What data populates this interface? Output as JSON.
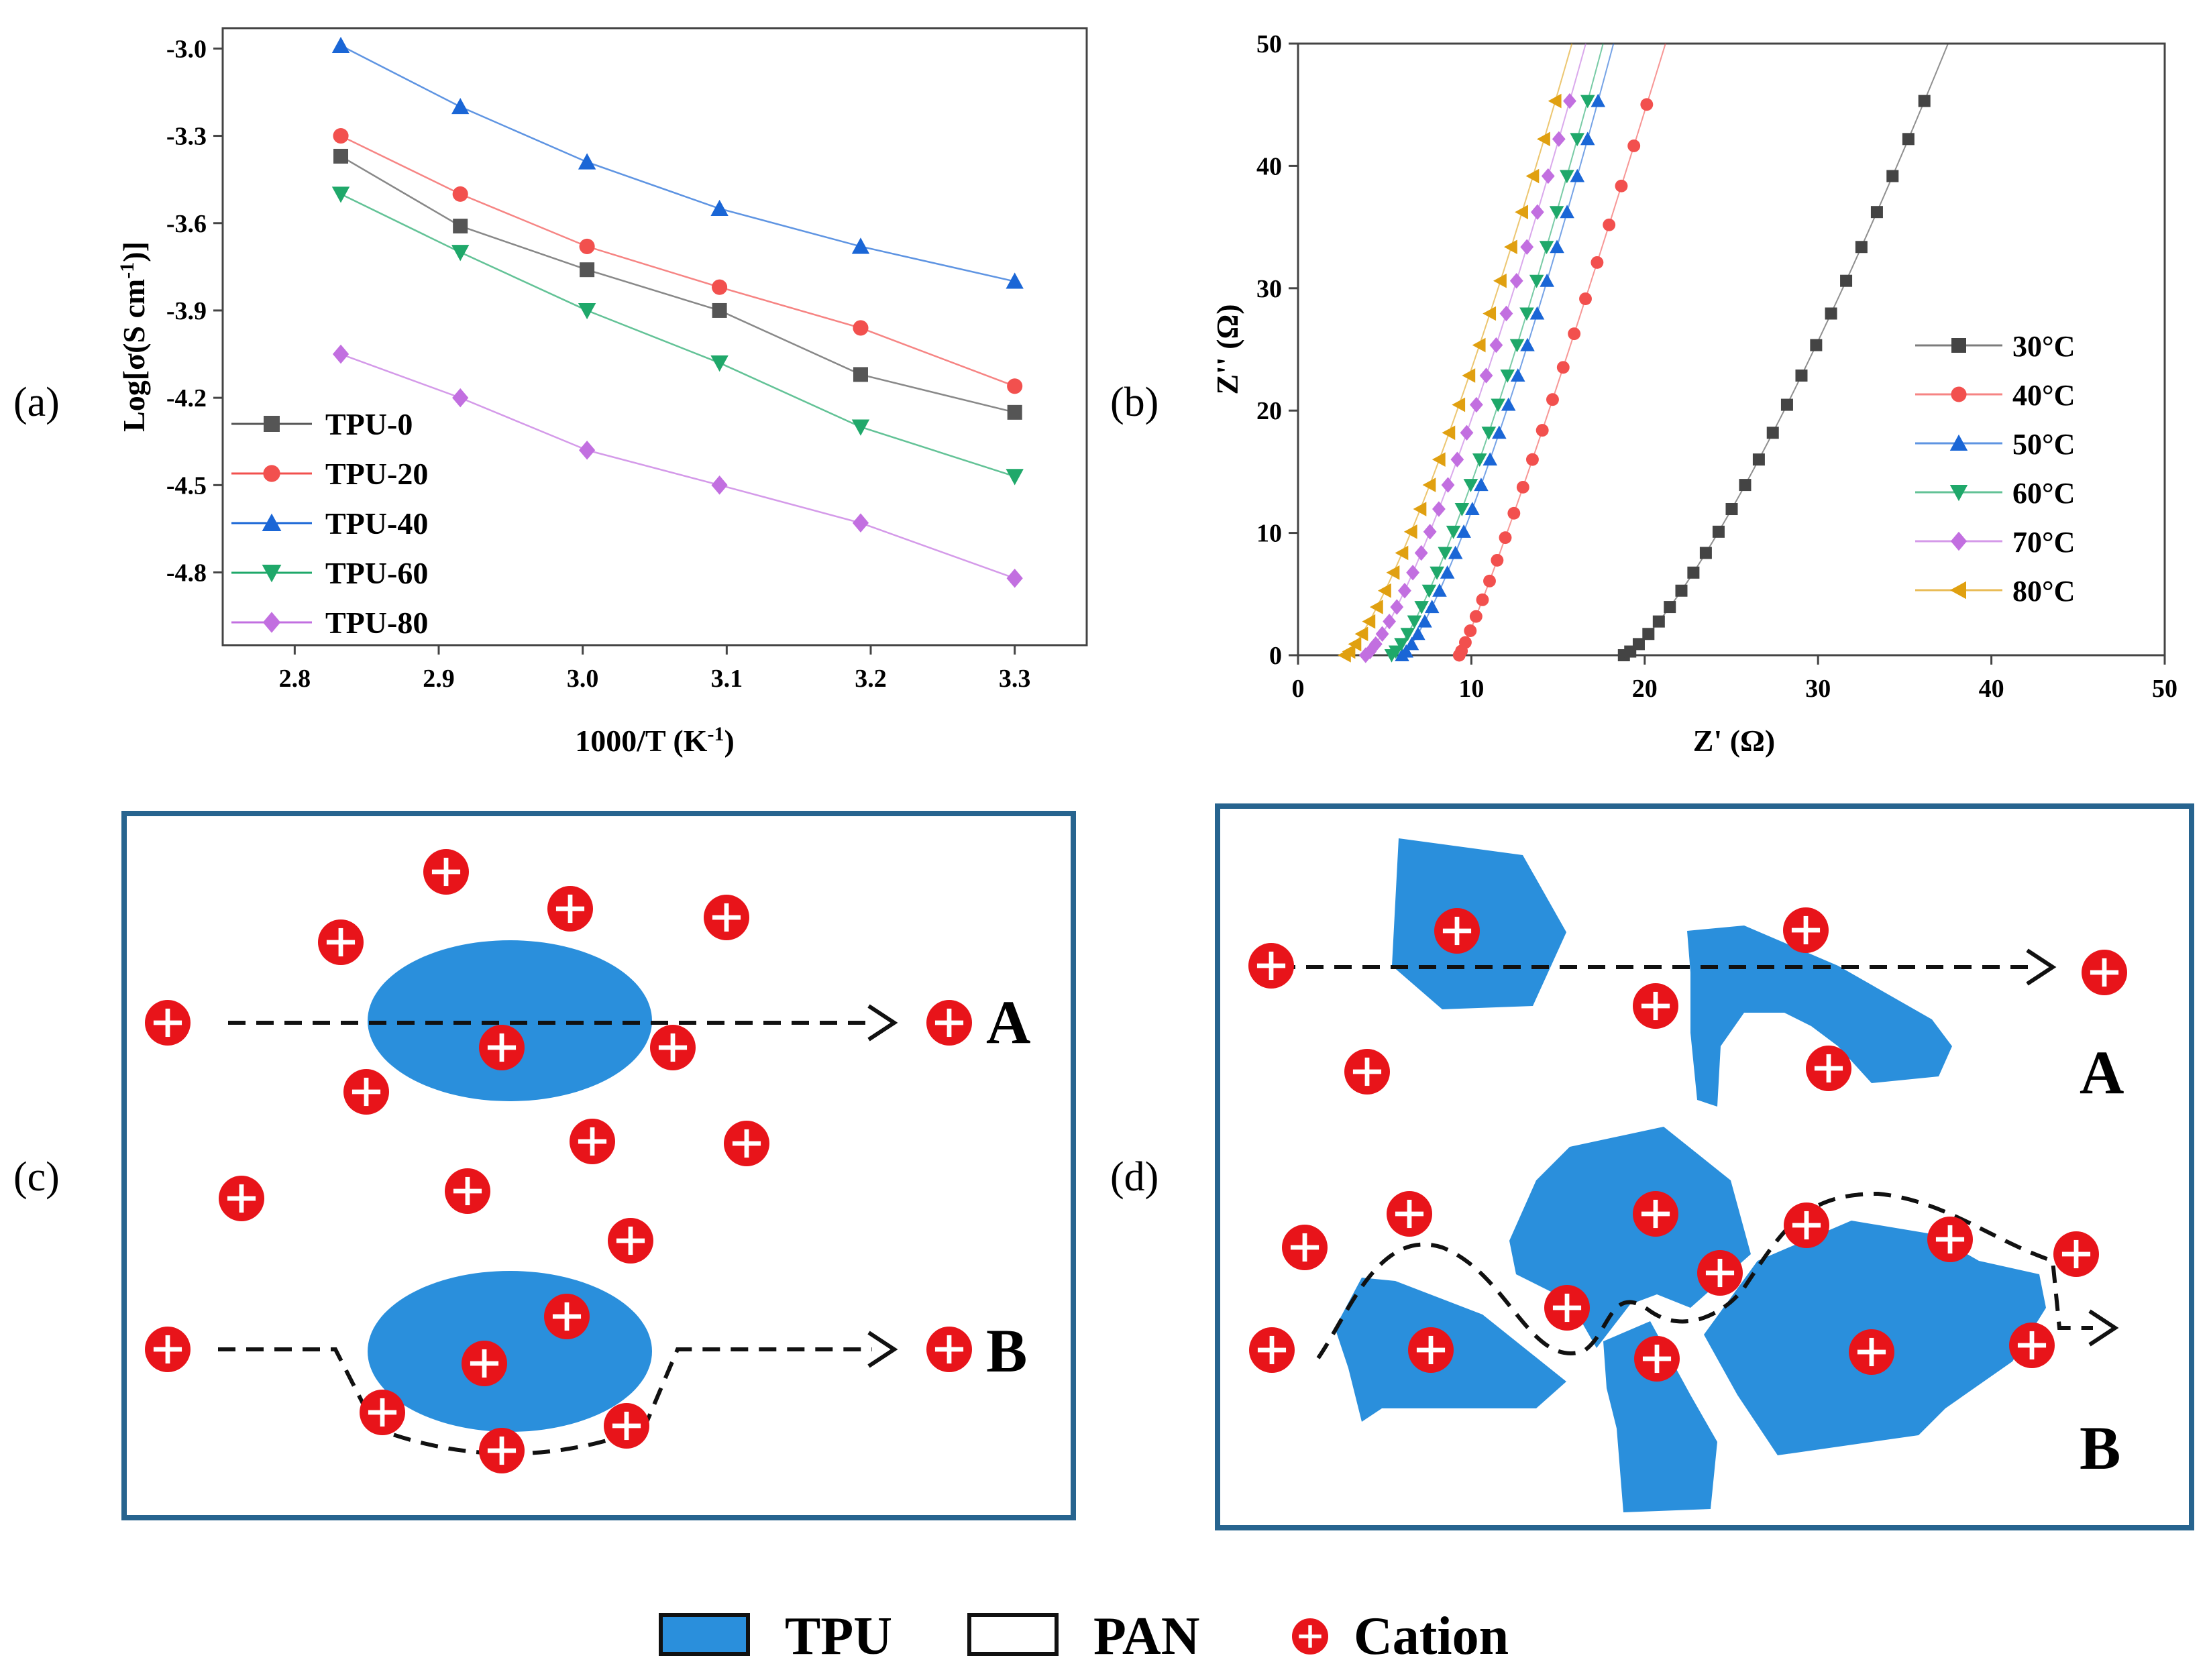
{
  "panel_labels": {
    "a": "(a)",
    "b": "(b)",
    "c": "(c)",
    "d": "(d)"
  },
  "colors": {
    "tpu_fill": "#2a8fdc",
    "cation": "#e8141a",
    "box_border": "#27648f",
    "axis": "#444444"
  },
  "chart_data": [
    {
      "id": "a",
      "type": "line",
      "title": "",
      "xlabel": "1000/T (K",
      "xlabel_sup": "-1",
      "xlabel_close": ")",
      "ylabel": "Log[σ(S cm",
      "ylabel_sup": "-1",
      "ylabel_close": ")]",
      "xlim": [
        2.75,
        3.35
      ],
      "ylim": [
        -5.05,
        -2.93
      ],
      "xticks": [
        "2.8",
        "2.9",
        "3.0",
        "3.1",
        "3.2",
        "3.3"
      ],
      "xtick_values": [
        2.8,
        2.9,
        3.0,
        3.1,
        3.2,
        3.3
      ],
      "yticks": [
        "-3.0",
        "-3.3",
        "-3.6",
        "-3.9",
        "-4.2",
        "-4.5",
        "-4.8"
      ],
      "ytick_values": [
        -3.0,
        -3.3,
        -3.6,
        -3.9,
        -4.2,
        -4.5,
        -4.8
      ],
      "legend_position": "bottom-left",
      "x": [
        2.832,
        2.915,
        3.003,
        3.095,
        3.193,
        3.3
      ],
      "series": [
        {
          "name": "TPU-0",
          "color": "#555555",
          "marker": "square",
          "values": [
            -3.37,
            -3.61,
            -3.76,
            -3.9,
            -4.12,
            -4.25
          ]
        },
        {
          "name": "TPU-20",
          "color": "#f2504e",
          "marker": "circle",
          "values": [
            -3.3,
            -3.5,
            -3.68,
            -3.82,
            -3.96,
            -4.16
          ]
        },
        {
          "name": "TPU-40",
          "color": "#1a66d6",
          "marker": "triangle-up",
          "values": [
            -2.99,
            -3.2,
            -3.39,
            -3.55,
            -3.68,
            -3.8
          ]
        },
        {
          "name": "TPU-60",
          "color": "#1fa86a",
          "marker": "triangle-down",
          "values": [
            -3.5,
            -3.7,
            -3.9,
            -4.08,
            -4.3,
            -4.47
          ]
        },
        {
          "name": "TPU-80",
          "color": "#c26fe0",
          "marker": "diamond",
          "values": [
            -4.05,
            -4.2,
            -4.38,
            -4.5,
            -4.63,
            -4.82
          ]
        }
      ]
    },
    {
      "id": "b",
      "type": "scatter",
      "title": "",
      "xlabel": "Z' (Ω)",
      "ylabel": "Z'' (Ω)",
      "xlim": [
        0,
        50
      ],
      "ylim": [
        0,
        50
      ],
      "xticks": [
        "0",
        "10",
        "20",
        "30",
        "40",
        "50"
      ],
      "xtick_values": [
        0,
        10,
        20,
        30,
        40,
        50
      ],
      "yticks": [
        "0",
        "10",
        "20",
        "30",
        "40",
        "50"
      ],
      "ytick_values": [
        0,
        10,
        20,
        30,
        40,
        50
      ],
      "legend_position": "right",
      "series": [
        {
          "name": "30°C",
          "color": "#444444",
          "marker": "square",
          "x_start": 18.8,
          "x_end": 37.5,
          "y_end": 50,
          "curve": 1.3,
          "points": 24
        },
        {
          "name": "40°C",
          "color": "#f2504e",
          "marker": "circle",
          "x_start": 9.3,
          "x_end": 21.2,
          "y_end": 50,
          "curve": 1.1,
          "points": 22
        },
        {
          "name": "50°C",
          "color": "#1a66d6",
          "marker": "triangle-up",
          "x_start": 6.0,
          "x_end": 18.2,
          "y_end": 50,
          "curve": 1.3,
          "points": 24
        },
        {
          "name": "60°C",
          "color": "#1fa86a",
          "marker": "triangle-down",
          "x_start": 5.4,
          "x_end": 17.6,
          "y_end": 50,
          "curve": 1.3,
          "points": 24
        },
        {
          "name": "70°C",
          "color": "#c26fe0",
          "marker": "diamond",
          "x_start": 3.9,
          "x_end": 16.6,
          "y_end": 50,
          "curve": 1.3,
          "points": 24
        },
        {
          "name": "80°C",
          "color": "#e0a010",
          "marker": "triangle-left",
          "x_start": 2.7,
          "x_end": 15.8,
          "y_end": 50,
          "curve": 1.3,
          "points": 24
        }
      ]
    }
  ],
  "schematic_c": {
    "label_a": "A",
    "label_b": "B"
  },
  "schematic_d": {
    "label_a": "A",
    "label_b": "B"
  },
  "legend": {
    "tpu": "TPU",
    "pan": "PAN",
    "cation": "Cation"
  }
}
